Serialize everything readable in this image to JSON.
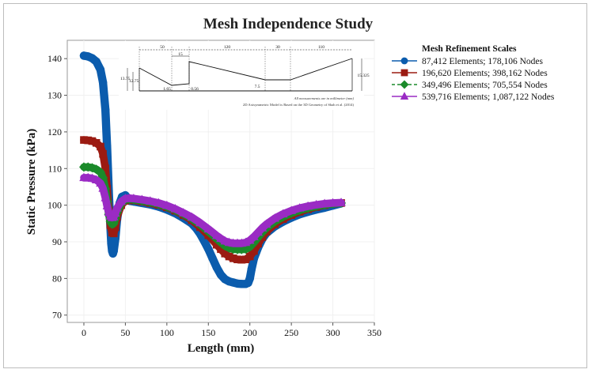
{
  "chart_data": {
    "type": "line",
    "title": "Mesh Independence Study",
    "xlabel": "Length (mm)",
    "ylabel": "Static Pressure (kPa)",
    "xlim": [
      -20,
      350
    ],
    "ylim": [
      68,
      145
    ],
    "xticks": [
      0,
      50,
      100,
      150,
      200,
      250,
      300,
      350
    ],
    "yticks": [
      70,
      80,
      90,
      100,
      110,
      120,
      130,
      140
    ],
    "grid": true,
    "legend": {
      "title": "Mesh Refinement Scales",
      "placement": "right"
    },
    "series": [
      {
        "name": "87,412 Elements; 178,106 Nodes",
        "color": "#0b5cad",
        "marker": "circle",
        "x": [
          0,
          5,
          10,
          15,
          20,
          23,
          26,
          28,
          30,
          32,
          33,
          34,
          35,
          36,
          38,
          40,
          43,
          46,
          50,
          52,
          55,
          60,
          70,
          80,
          90,
          100,
          110,
          120,
          130,
          135,
          140,
          145,
          150,
          155,
          160,
          165,
          170,
          175,
          180,
          185,
          190,
          195,
          198,
          200,
          202,
          205,
          210,
          215,
          220,
          230,
          240,
          250,
          260,
          270,
          280,
          290,
          300,
          310
        ],
        "y": [
          140.8,
          140.6,
          140.1,
          139.2,
          137.0,
          133.5,
          126.0,
          116.0,
          104.0,
          94.0,
          89.5,
          87.5,
          86.8,
          87.5,
          91.0,
          96.0,
          100.5,
          102.3,
          102.7,
          101.6,
          101.2,
          101.0,
          100.6,
          100.2,
          99.6,
          98.8,
          97.8,
          96.5,
          95.0,
          93.8,
          92.2,
          90.2,
          88.0,
          85.5,
          83.0,
          81.0,
          79.8,
          79.2,
          78.9,
          78.6,
          78.5,
          78.5,
          78.8,
          80.0,
          82.5,
          85.5,
          88.5,
          90.8,
          92.4,
          94.2,
          95.5,
          96.6,
          97.5,
          98.2,
          98.8,
          99.3,
          99.9,
          100.5
        ]
      },
      {
        "name": "196,620 Elements; 398,162 Nodes",
        "color": "#9b1b12",
        "marker": "square",
        "x": [
          0,
          5,
          10,
          15,
          20,
          23,
          26,
          28,
          30,
          32,
          34,
          36,
          38,
          40,
          45,
          50,
          55,
          60,
          70,
          80,
          90,
          100,
          110,
          120,
          130,
          140,
          150,
          160,
          165,
          170,
          175,
          180,
          185,
          190,
          195,
          200,
          205,
          210,
          215,
          220,
          230,
          240,
          250,
          260,
          270,
          280,
          290,
          300,
          310
        ],
        "y": [
          117.8,
          117.7,
          117.5,
          117.0,
          116.0,
          114.0,
          110.0,
          104.5,
          98.5,
          94.5,
          92.5,
          92.3,
          94.0,
          96.8,
          100.0,
          101.2,
          101.4,
          101.3,
          101.0,
          100.6,
          100.1,
          99.4,
          98.5,
          97.3,
          95.9,
          94.0,
          91.8,
          89.2,
          88.0,
          86.8,
          86.0,
          85.5,
          85.2,
          85.1,
          85.2,
          86.0,
          87.5,
          89.5,
          91.3,
          92.8,
          94.8,
          96.2,
          97.3,
          98.2,
          98.9,
          99.5,
          100.0,
          100.4,
          100.6
        ]
      },
      {
        "name": "349,496 Elements; 705,554 Nodes",
        "color": "#1a8a2a",
        "marker": "diamond",
        "x": [
          0,
          5,
          10,
          15,
          20,
          23,
          26,
          28,
          30,
          32,
          34,
          36,
          38,
          40,
          45,
          50,
          55,
          60,
          70,
          80,
          90,
          100,
          110,
          120,
          130,
          140,
          150,
          160,
          165,
          170,
          175,
          180,
          185,
          190,
          195,
          200,
          205,
          210,
          215,
          220,
          230,
          240,
          250,
          260,
          270,
          280,
          290,
          300,
          310
        ],
        "y": [
          110.4,
          110.4,
          110.2,
          109.8,
          109.0,
          107.5,
          104.5,
          101.0,
          97.5,
          95.5,
          94.8,
          95.0,
          96.3,
          98.0,
          100.5,
          101.4,
          101.6,
          101.5,
          101.2,
          100.8,
          100.3,
          99.6,
          98.7,
          97.6,
          96.3,
          94.7,
          92.8,
          90.8,
          89.8,
          88.9,
          88.3,
          88.0,
          87.9,
          87.9,
          88.0,
          88.6,
          89.8,
          91.2,
          92.6,
          93.8,
          95.5,
          96.8,
          97.8,
          98.6,
          99.2,
          99.7,
          100.1,
          100.4,
          100.6
        ]
      },
      {
        "name": "539,716 Elements; 1,087,122 Nodes",
        "color": "#9a2bc4",
        "marker": "triangle",
        "x": [
          0,
          5,
          10,
          15,
          20,
          23,
          26,
          28,
          30,
          32,
          34,
          36,
          38,
          40,
          45,
          50,
          55,
          60,
          70,
          80,
          90,
          100,
          110,
          120,
          130,
          140,
          150,
          160,
          165,
          170,
          175,
          180,
          185,
          190,
          195,
          200,
          205,
          210,
          215,
          220,
          230,
          240,
          250,
          260,
          270,
          280,
          290,
          300,
          310
        ],
        "y": [
          107.5,
          107.5,
          107.3,
          106.9,
          106.0,
          104.6,
          102.0,
          99.8,
          98.0,
          97.0,
          96.6,
          96.8,
          97.8,
          99.2,
          101.0,
          101.8,
          101.9,
          101.8,
          101.5,
          101.1,
          100.6,
          99.9,
          99.0,
          97.9,
          96.7,
          95.2,
          93.5,
          91.7,
          90.9,
          90.2,
          89.8,
          89.6,
          89.6,
          89.6,
          89.8,
          90.4,
          91.4,
          92.6,
          93.8,
          94.8,
          96.4,
          97.6,
          98.5,
          99.2,
          99.7,
          100.1,
          100.4,
          100.6,
          100.7
        ]
      }
    ],
    "inset": {
      "dimensions_top": [
        "50",
        "15",
        "120",
        "30",
        "110"
      ],
      "dimensions_left": [
        "13.75",
        "12.75"
      ],
      "dimensions_bottom": [
        "1.65",
        "0.56",
        "7.5"
      ],
      "dimension_right": "15.325",
      "note_units": "All measurements are in millimeter (mm)",
      "note_source": "2D Axisymmetric Model is Based on the 3D Geometry of Shah et al. (2014)"
    }
  }
}
